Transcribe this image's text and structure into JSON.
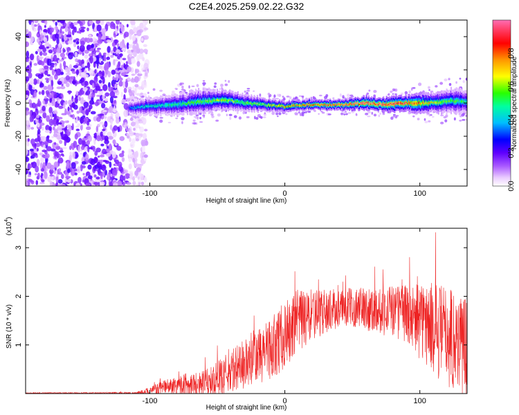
{
  "title": "C2E4.2025.259.02.22.G32",
  "colorbar": {
    "label": "Normalized spectral amplitude",
    "ticks": [
      "0.0",
      "0.2",
      "0.4",
      "0.6",
      "0.8"
    ],
    "tick_values": [
      0.0,
      0.2,
      0.4,
      0.6,
      0.8
    ],
    "range": [
      0.0,
      1.0
    ],
    "colors": [
      "#ffffff",
      "#e6c6ff",
      "#a64dff",
      "#5a00ff",
      "#0000ff",
      "#00c8ff",
      "#00ff96",
      "#32ff00",
      "#ffff00",
      "#ff9600",
      "#ff0000",
      "#ff3c64",
      "#ff6eb4"
    ]
  },
  "chart_data": [
    {
      "type": "heatmap",
      "xlabel": "Height of straight line (km)",
      "ylabel": "Frequency (Hz)",
      "xlim": [
        -192,
        135
      ],
      "ylim": [
        -50,
        50
      ],
      "xticks": [
        -100,
        0,
        100
      ],
      "xtick_labels": [
        "-100",
        "0",
        "100"
      ],
      "yticks": [
        -40,
        -20,
        0,
        20,
        40
      ],
      "ytick_labels": [
        "-40",
        "-20",
        "0",
        "20",
        "40"
      ],
      "noise_region_x": [
        -192,
        -110
      ],
      "ridge": {
        "x": [
          -115,
          -100,
          -80,
          -60,
          -45,
          -30,
          -15,
          0,
          15,
          30,
          45,
          60,
          75,
          90,
          105,
          120,
          135
        ],
        "freq": [
          -3,
          -2,
          -1,
          1,
          2,
          0,
          -1,
          -2,
          -1,
          -1,
          -1,
          0,
          -1,
          0,
          0,
          1,
          1
        ],
        "halfwidth": [
          4,
          5,
          6,
          7,
          6,
          5,
          4,
          3,
          3,
          3,
          3,
          4,
          4,
          5,
          6,
          7,
          7
        ],
        "peak": [
          0.35,
          0.45,
          0.5,
          0.55,
          0.6,
          0.55,
          0.6,
          0.75,
          0.85,
          0.85,
          0.9,
          0.95,
          0.95,
          0.9,
          0.7,
          0.55,
          0.5
        ]
      }
    },
    {
      "type": "line",
      "xlabel": "Height of straight line (km)",
      "ylabel": "SNR (10 * v/v)",
      "y_scale_label": "(x10",
      "y_scale_exp": "4",
      "y_scale_close": ")",
      "xlim": [
        -192,
        135
      ],
      "ylim": [
        0,
        3.4
      ],
      "xticks": [
        -100,
        0,
        100
      ],
      "xtick_labels": [
        "-100",
        "0",
        "100"
      ],
      "yticks": [
        1,
        2,
        3
      ],
      "ytick_labels": [
        "1",
        "2",
        "3"
      ],
      "line_color": "#ee2222",
      "envelope": {
        "x": [
          -192,
          -110,
          -100,
          -90,
          -80,
          -70,
          -60,
          -50,
          -40,
          -30,
          -20,
          -10,
          0,
          10,
          20,
          30,
          40,
          50,
          60,
          70,
          80,
          90,
          100,
          110,
          120,
          135
        ],
        "mean": [
          0.01,
          0.01,
          0.05,
          0.12,
          0.18,
          0.2,
          0.2,
          0.3,
          0.45,
          0.6,
          0.75,
          0.95,
          1.2,
          1.45,
          1.6,
          1.7,
          1.75,
          1.78,
          1.75,
          1.72,
          1.7,
          1.65,
          1.5,
          1.35,
          1.2,
          1.0
        ],
        "amp": [
          0.01,
          0.02,
          0.08,
          0.15,
          0.2,
          0.25,
          0.28,
          0.35,
          0.45,
          0.55,
          0.6,
          0.65,
          0.7,
          0.7,
          0.55,
          0.45,
          0.4,
          0.4,
          0.45,
          0.5,
          0.55,
          0.6,
          0.8,
          0.95,
          1.05,
          1.1
        ]
      }
    }
  ]
}
